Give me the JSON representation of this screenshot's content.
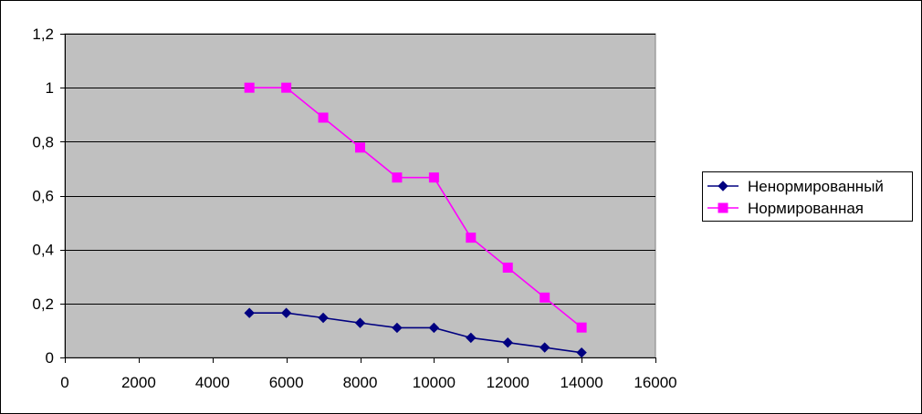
{
  "chart_data": {
    "type": "line",
    "title": "",
    "xlabel": "",
    "ylabel": "",
    "xlim": [
      0,
      16000
    ],
    "ylim": [
      0,
      1.2
    ],
    "x_ticks": [
      "0",
      "2000",
      "4000",
      "6000",
      "8000",
      "10000",
      "12000",
      "14000",
      "16000"
    ],
    "y_ticks": [
      "0",
      "0,2",
      "0,4",
      "0,6",
      "0,8",
      "1",
      "1,2"
    ],
    "grid": "horizontal",
    "plot_background": "#c0c0c0",
    "legend_position": "right",
    "series": [
      {
        "name": "Ненормированный",
        "color": "#000080",
        "marker": "diamond",
        "x": [
          5000,
          6000,
          7000,
          8000,
          9000,
          10000,
          11000,
          12000,
          13000,
          14000
        ],
        "y": [
          0.165,
          0.165,
          0.147,
          0.128,
          0.11,
          0.11,
          0.073,
          0.055,
          0.037,
          0.018
        ]
      },
      {
        "name": "Нормированная",
        "color": "#ff00ff",
        "marker": "square",
        "x": [
          5000,
          6000,
          7000,
          8000,
          9000,
          10000,
          11000,
          12000,
          13000,
          14000
        ],
        "y": [
          1.0,
          1.0,
          0.889,
          0.778,
          0.667,
          0.667,
          0.444,
          0.333,
          0.222,
          0.111
        ]
      }
    ]
  }
}
